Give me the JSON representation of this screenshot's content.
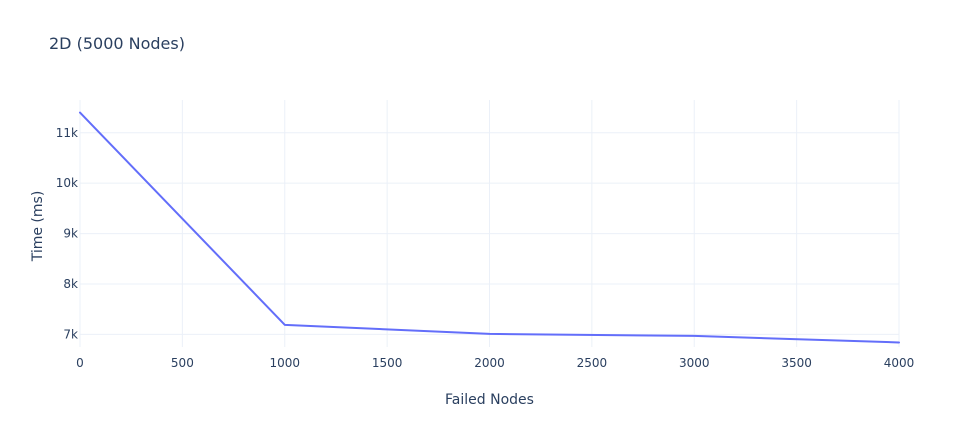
{
  "chart_data": {
    "type": "line",
    "title": "2D (5000 Nodes)",
    "xlabel": "Failed Nodes",
    "ylabel": "Time (ms)",
    "xlim": [
      0,
      4000
    ],
    "ylim": [
      6750,
      11650
    ],
    "x_ticks": [
      0,
      500,
      1000,
      1500,
      2000,
      2500,
      3000,
      3500,
      4000
    ],
    "x_tick_labels": [
      "0",
      "500",
      "1000",
      "1500",
      "2000",
      "2500",
      "3000",
      "3500",
      "4000"
    ],
    "y_ticks": [
      7000,
      8000,
      9000,
      10000,
      11000
    ],
    "y_tick_labels": [
      "7k",
      "8k",
      "9k",
      "10k",
      "11k"
    ],
    "grid": true,
    "legend": false,
    "series": [
      {
        "color": "#636efa",
        "x": [
          0,
          1000,
          2000,
          3000,
          4000
        ],
        "y": [
          11400,
          7190,
          7010,
          6970,
          6840
        ]
      }
    ]
  }
}
